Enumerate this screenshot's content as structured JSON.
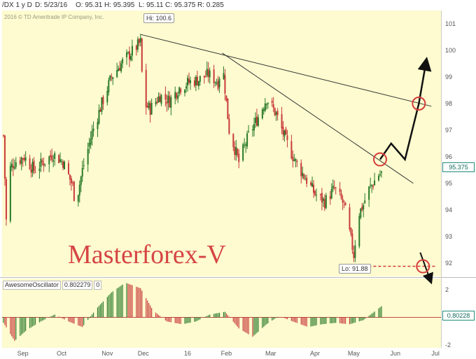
{
  "header": {
    "symbol": "/DX 1 y D",
    "date": "D: 5/23/16",
    "open": "O: 95.31",
    "high": "H: 95.395",
    "low": "L: 95.11",
    "close": "C: 95.375",
    "range": "R: 0.285"
  },
  "copyright": "2016 © TD Ameritrade IP Company, Inc.",
  "watermark": "Masterforex-V",
  "annotations": {
    "hi_label": "Hi: 100.6",
    "lo_label": "Lo: 91.88",
    "last_price": "95.375"
  },
  "oscillator": {
    "name": "AwesomeOscillator",
    "value": "0.802279",
    "value2": "0",
    "last_value": "0.80228",
    "ticks": [
      "2",
      "0",
      "-2"
    ]
  },
  "chart_data": [
    {
      "type": "candlestick",
      "title": "/DX 1 y D",
      "xlabel": "",
      "ylabel": "",
      "ylim": [
        91.5,
        101.5
      ],
      "x_ticks": [
        "Sep",
        "Oct",
        "Nov",
        "Dec",
        "16",
        "Feb",
        "Mar",
        "Apr",
        "May",
        "Jun",
        "Jul"
      ],
      "y_ticks": [
        101,
        100,
        99,
        98,
        97,
        96,
        95,
        94,
        93,
        92
      ],
      "grid": false,
      "series": [
        {
          "name": "/DX daily close (approx.)",
          "points": [
            {
              "x": "Aug 24",
              "y": 96.8
            },
            {
              "x": "Aug 26",
              "y": 93.6
            },
            {
              "x": "Aug 28",
              "y": 95.5
            },
            {
              "x": "Sep 1",
              "y": 95.8
            },
            {
              "x": "Sep 8",
              "y": 96.0
            },
            {
              "x": "Sep 15",
              "y": 95.5
            },
            {
              "x": "Sep 22",
              "y": 95.8
            },
            {
              "x": "Sep 29",
              "y": 96.1
            },
            {
              "x": "Oct 6",
              "y": 95.8
            },
            {
              "x": "Oct 13",
              "y": 94.9
            },
            {
              "x": "Oct 15",
              "y": 94.2
            },
            {
              "x": "Oct 20",
              "y": 95.5
            },
            {
              "x": "Oct 27",
              "y": 96.9
            },
            {
              "x": "Nov 3",
              "y": 98.0
            },
            {
              "x": "Nov 10",
              "y": 99.0
            },
            {
              "x": "Nov 17",
              "y": 99.5
            },
            {
              "x": "Nov 24",
              "y": 99.9
            },
            {
              "x": "Dec 1",
              "y": 100.3
            },
            {
              "x": "Dec 3",
              "y": 98.0
            },
            {
              "x": "Dec 8",
              "y": 97.8
            },
            {
              "x": "Dec 15",
              "y": 98.3
            },
            {
              "x": "Dec 22",
              "y": 98.1
            },
            {
              "x": "Dec 29",
              "y": 98.6
            },
            {
              "x": "Jan 5",
              "y": 98.8
            },
            {
              "x": "Jan 12",
              "y": 98.9
            },
            {
              "x": "Jan 19",
              "y": 99.1
            },
            {
              "x": "Jan 26",
              "y": 98.8
            },
            {
              "x": "Jan 29",
              "y": 99.6
            },
            {
              "x": "Feb 3",
              "y": 97.0
            },
            {
              "x": "Feb 10",
              "y": 95.8
            },
            {
              "x": "Feb 17",
              "y": 96.8
            },
            {
              "x": "Feb 24",
              "y": 97.5
            },
            {
              "x": "Mar 1",
              "y": 98.2
            },
            {
              "x": "Mar 8",
              "y": 97.6
            },
            {
              "x": "Mar 15",
              "y": 96.6
            },
            {
              "x": "Mar 22",
              "y": 95.8
            },
            {
              "x": "Mar 29",
              "y": 95.2
            },
            {
              "x": "Apr 5",
              "y": 94.6
            },
            {
              "x": "Apr 12",
              "y": 94.3
            },
            {
              "x": "Apr 19",
              "y": 94.8
            },
            {
              "x": "Apr 26",
              "y": 94.2
            },
            {
              "x": "May 2",
              "y": 92.6
            },
            {
              "x": "May 3",
              "y": 92.3
            },
            {
              "x": "May 6",
              "y": 93.8
            },
            {
              "x": "May 10",
              "y": 94.2
            },
            {
              "x": "May 13",
              "y": 94.7
            },
            {
              "x": "May 17",
              "y": 95.0
            },
            {
              "x": "May 20",
              "y": 95.3
            },
            {
              "x": "May 23",
              "y": 95.375
            }
          ]
        }
      ],
      "trendlines": [
        {
          "from": {
            "x": "Dec 1",
            "y": 100.6
          },
          "to": {
            "x": "Jun 28",
            "y": 97.9
          }
        },
        {
          "from": {
            "x": "Jan 29",
            "y": 99.9
          },
          "to": {
            "x": "Jun 15",
            "y": 95.0
          }
        },
        {
          "from": {
            "x": "May 3",
            "y": 91.88
          },
          "to": {
            "x": "Jul 1",
            "y": 91.88
          },
          "style": "dashed"
        }
      ],
      "projection": [
        {
          "x": "May 22",
          "y": 95.9
        },
        {
          "x": "May 30",
          "y": 96.5
        },
        {
          "x": "Jun 9",
          "y": 95.9
        },
        {
          "x": "Jun 19",
          "y": 98.0
        },
        {
          "x": "Jun 24",
          "y": 99.5
        }
      ],
      "projection_down": [
        {
          "x": "Jun 20",
          "y": 92.4
        },
        {
          "x": "Jun 27",
          "y": 91.4
        }
      ],
      "markers": [
        {
          "x": "May 22",
          "y": 95.9
        },
        {
          "x": "Jun 19",
          "y": 98.0
        },
        {
          "x": "Jun 22",
          "y": 91.88
        }
      ]
    },
    {
      "type": "bar",
      "title": "AwesomeOscillator",
      "ylim": [
        -2.2,
        2.8
      ],
      "y_ticks": [
        2,
        0,
        -2
      ],
      "x_ticks": [
        "Sep",
        "Oct",
        "Nov",
        "Dec",
        "16",
        "Feb",
        "Mar",
        "Apr",
        "May",
        "Jun",
        "Jul"
      ],
      "x": [
        "Aug 24",
        "Sep 1",
        "Sep 10",
        "Sep 20",
        "Sep 30",
        "Oct 10",
        "Oct 20",
        "Oct 30",
        "Nov 10",
        "Nov 20",
        "Dec 1",
        "Dec 10",
        "Dec 20",
        "Dec 31",
        "Jan 10",
        "Jan 20",
        "Jan 31",
        "Feb 10",
        "Feb 20",
        "Mar 1",
        "Mar 10",
        "Mar 20",
        "Mar 31",
        "Apr 10",
        "Apr 20",
        "Apr 30",
        "May 10",
        "May 23"
      ],
      "values": [
        -0.4,
        -1.7,
        -0.9,
        -0.3,
        0.2,
        -0.3,
        -0.7,
        0.6,
        1.8,
        2.5,
        2.1,
        0.5,
        -0.3,
        -0.5,
        -0.3,
        0.2,
        0.4,
        -0.8,
        -1.4,
        -0.5,
        0.1,
        -0.3,
        -0.7,
        -0.5,
        -0.4,
        -0.5,
        -0.2,
        0.8
      ]
    }
  ]
}
